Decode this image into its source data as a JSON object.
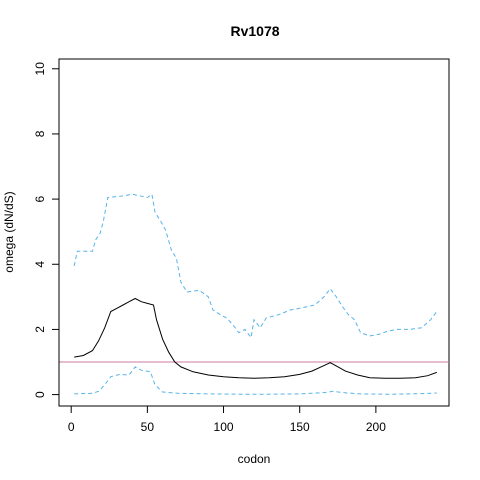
{
  "chart_data": {
    "type": "line",
    "title": "Rv1078",
    "xlabel": "codon",
    "ylabel": "omega (dN/dS)",
    "xlim": [
      -8,
      248
    ],
    "ylim": [
      -0.35,
      10.3
    ],
    "x_ticks": [
      0,
      50,
      100,
      150,
      200
    ],
    "y_ticks": [
      0,
      2,
      4,
      6,
      8,
      10
    ],
    "grid": false,
    "reference_line": {
      "y": 1,
      "color": "#cc79a7"
    },
    "series": [
      {
        "style": "dashed",
        "color": "#56b4e9",
        "points": [
          [
            2,
            3.95
          ],
          [
            4,
            4.4
          ],
          [
            14,
            4.4
          ],
          [
            16,
            4.75
          ],
          [
            19,
            4.95
          ],
          [
            21,
            5.3
          ],
          [
            24,
            6.05
          ],
          [
            35,
            6.1
          ],
          [
            40,
            6.15
          ],
          [
            45,
            6.1
          ],
          [
            50,
            6.05
          ],
          [
            53,
            6.15
          ],
          [
            55,
            5.6
          ],
          [
            59,
            5.3
          ],
          [
            62,
            5.05
          ],
          [
            66,
            4.4
          ],
          [
            69,
            4.2
          ],
          [
            72,
            3.45
          ],
          [
            76,
            3.15
          ],
          [
            84,
            3.2
          ],
          [
            90,
            3.0
          ],
          [
            93,
            2.6
          ],
          [
            98,
            2.45
          ],
          [
            102,
            2.35
          ],
          [
            106,
            2.15
          ],
          [
            110,
            1.9
          ],
          [
            114,
            2.0
          ],
          [
            118,
            1.75
          ],
          [
            120,
            2.3
          ],
          [
            124,
            2.05
          ],
          [
            128,
            2.35
          ],
          [
            136,
            2.45
          ],
          [
            144,
            2.6
          ],
          [
            150,
            2.65
          ],
          [
            160,
            2.75
          ],
          [
            166,
            3.0
          ],
          [
            170,
            3.25
          ],
          [
            174,
            3.0
          ],
          [
            178,
            2.7
          ],
          [
            182,
            2.45
          ],
          [
            186,
            2.3
          ],
          [
            190,
            1.9
          ],
          [
            196,
            1.8
          ],
          [
            202,
            1.85
          ],
          [
            208,
            1.95
          ],
          [
            214,
            2.0
          ],
          [
            222,
            2.0
          ],
          [
            230,
            2.05
          ],
          [
            236,
            2.3
          ],
          [
            240,
            2.55
          ]
        ]
      },
      {
        "style": "solid",
        "color": "#000000",
        "points": [
          [
            2,
            1.15
          ],
          [
            8,
            1.2
          ],
          [
            14,
            1.35
          ],
          [
            18,
            1.65
          ],
          [
            22,
            2.05
          ],
          [
            26,
            2.55
          ],
          [
            30,
            2.65
          ],
          [
            34,
            2.75
          ],
          [
            38,
            2.85
          ],
          [
            42,
            2.95
          ],
          [
            46,
            2.85
          ],
          [
            50,
            2.8
          ],
          [
            54,
            2.75
          ],
          [
            56,
            2.3
          ],
          [
            60,
            1.7
          ],
          [
            64,
            1.3
          ],
          [
            68,
            1.0
          ],
          [
            72,
            0.85
          ],
          [
            80,
            0.7
          ],
          [
            90,
            0.6
          ],
          [
            100,
            0.55
          ],
          [
            110,
            0.52
          ],
          [
            120,
            0.5
          ],
          [
            130,
            0.52
          ],
          [
            140,
            0.55
          ],
          [
            150,
            0.62
          ],
          [
            158,
            0.72
          ],
          [
            164,
            0.85
          ],
          [
            170,
            0.98
          ],
          [
            174,
            0.88
          ],
          [
            180,
            0.72
          ],
          [
            188,
            0.6
          ],
          [
            196,
            0.52
          ],
          [
            206,
            0.5
          ],
          [
            216,
            0.5
          ],
          [
            226,
            0.52
          ],
          [
            234,
            0.58
          ],
          [
            240,
            0.68
          ]
        ]
      },
      {
        "style": "dashed",
        "color": "#56b4e9",
        "points": [
          [
            2,
            0.02
          ],
          [
            14,
            0.04
          ],
          [
            18,
            0.1
          ],
          [
            22,
            0.3
          ],
          [
            26,
            0.55
          ],
          [
            32,
            0.62
          ],
          [
            38,
            0.6
          ],
          [
            42,
            0.85
          ],
          [
            46,
            0.75
          ],
          [
            52,
            0.7
          ],
          [
            55,
            0.3
          ],
          [
            60,
            0.08
          ],
          [
            70,
            0.04
          ],
          [
            90,
            0.02
          ],
          [
            120,
            0.01
          ],
          [
            150,
            0.02
          ],
          [
            166,
            0.06
          ],
          [
            172,
            0.1
          ],
          [
            178,
            0.06
          ],
          [
            190,
            0.02
          ],
          [
            210,
            0.01
          ],
          [
            230,
            0.03
          ],
          [
            240,
            0.05
          ]
        ]
      }
    ]
  }
}
